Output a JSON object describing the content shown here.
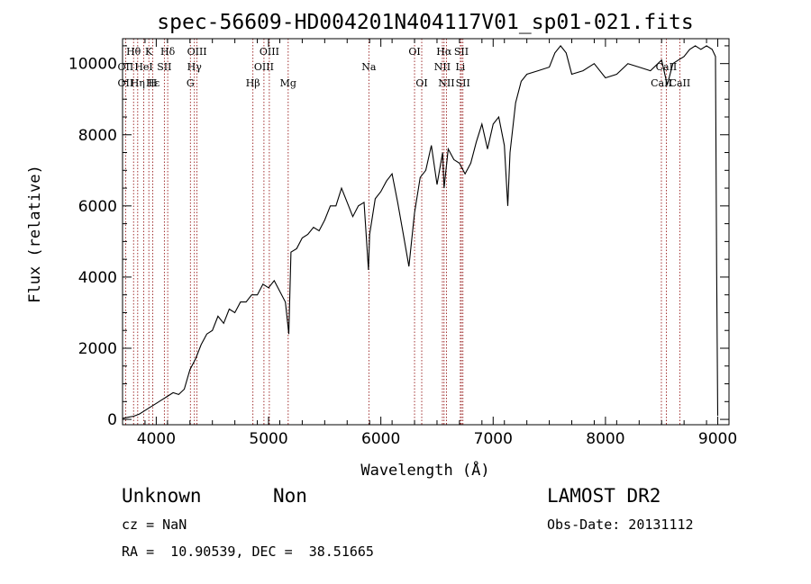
{
  "chart_data": {
    "type": "line",
    "title": "spec-56609-HD004201N404117V01_sp01-021.fits",
    "xlabel": "Wavelength (Å)",
    "ylabel": "Flux (relative)",
    "xlim": [
      3700,
      9100
    ],
    "ylim": [
      -150,
      10700
    ],
    "x_ticks": [
      4000,
      5000,
      6000,
      7000,
      8000,
      9000
    ],
    "y_ticks": [
      0,
      2000,
      4000,
      6000,
      8000,
      10000
    ],
    "grid": false,
    "series": [
      {
        "x": [
          3700,
          3750,
          3800,
          3850,
          3900,
          3950,
          4000,
          4050,
          4100,
          4150,
          4200,
          4250,
          4300,
          4350,
          4400,
          4450,
          4500,
          4550,
          4600,
          4650,
          4700,
          4750,
          4800,
          4850,
          4900,
          4950,
          5000,
          5050,
          5100,
          5150,
          5180,
          5200,
          5250,
          5300,
          5350,
          5400,
          5450,
          5500,
          5550,
          5600,
          5650,
          5700,
          5750,
          5800,
          5850,
          5890,
          5900,
          5950,
          6000,
          6050,
          6100,
          6150,
          6200,
          6250,
          6300,
          6350,
          6400,
          6450,
          6500,
          6550,
          6563,
          6600,
          6650,
          6700,
          6750,
          6800,
          6850,
          6900,
          6950,
          7000,
          7050,
          7100,
          7130,
          7150,
          7200,
          7250,
          7300,
          7400,
          7500,
          7550,
          7600,
          7650,
          7700,
          7800,
          7900,
          8000,
          8100,
          8200,
          8300,
          8400,
          8500,
          8550,
          8600,
          8650,
          8700,
          8750,
          8800,
          8850,
          8900,
          8950,
          8980,
          8990,
          9000
        ],
        "y": [
          30,
          60,
          90,
          150,
          250,
          350,
          450,
          550,
          650,
          750,
          700,
          850,
          1400,
          1700,
          2100,
          2400,
          2500,
          2900,
          2700,
          3100,
          3000,
          3300,
          3300,
          3500,
          3500,
          3800,
          3700,
          3900,
          3600,
          3300,
          2400,
          4700,
          4800,
          5100,
          5200,
          5400,
          5300,
          5600,
          6000,
          6000,
          6500,
          6100,
          5700,
          6000,
          6100,
          4200,
          5200,
          6200,
          6400,
          6700,
          6900,
          6100,
          5200,
          4300,
          5800,
          6800,
          7000,
          7700,
          6600,
          7500,
          6500,
          7600,
          7300,
          7200,
          6900,
          7200,
          7800,
          8300,
          7600,
          8300,
          8500,
          7700,
          6000,
          7500,
          8900,
          9500,
          9700,
          9800,
          9900,
          10300,
          10500,
          10300,
          9700,
          9800,
          10000,
          9600,
          9700,
          10000,
          9900,
          9800,
          10100,
          9400,
          10000,
          10100,
          10200,
          10400,
          10500,
          10400,
          10500,
          10400,
          10200,
          4200,
          100
        ]
      }
    ],
    "annotations": [
      {
        "text": "Hθ",
        "x": 3798
      },
      {
        "text": "K",
        "x": 3934
      },
      {
        "text": "Hδ",
        "x": 4102
      },
      {
        "text": "OIII",
        "x": 4363
      },
      {
        "text": "OIII",
        "x": 5007
      },
      {
        "text": "OI",
        "x": 6300
      },
      {
        "text": "Hα",
        "x": 6563
      },
      {
        "text": "SII",
        "x": 6717
      },
      {
        "text": "OII",
        "x": 3727
      },
      {
        "text": "HeI",
        "x": 3889
      },
      {
        "text": "SII",
        "x": 4072
      },
      {
        "text": "Hγ",
        "x": 4340
      },
      {
        "text": "OIII",
        "x": 4959
      },
      {
        "text": "Na",
        "x": 5893
      },
      {
        "text": "NII",
        "x": 6548
      },
      {
        "text": "Li",
        "x": 6708
      },
      {
        "text": "CaII",
        "x": 8542
      },
      {
        "text": "OII",
        "x": 3727
      },
      {
        "text": "Hε",
        "x": 3970
      },
      {
        "text": "Hη",
        "x": 3835
      },
      {
        "text": "H",
        "x": 3968
      },
      {
        "text": "G",
        "x": 4304
      },
      {
        "text": "Hβ",
        "x": 4861
      },
      {
        "text": "Mg",
        "x": 5175
      },
      {
        "text": "OI",
        "x": 6364
      },
      {
        "text": "NII",
        "x": 6584
      },
      {
        "text": "SII",
        "x": 6731
      },
      {
        "text": "CaII",
        "x": 8498
      },
      {
        "text": "CaII",
        "x": 8662
      }
    ],
    "line_positions": [
      3727,
      3798,
      3835,
      3889,
      3934,
      3968,
      4072,
      4102,
      4304,
      4340,
      4363,
      4861,
      4959,
      5007,
      5175,
      5893,
      6300,
      6364,
      6548,
      6563,
      6584,
      6708,
      6717,
      6731,
      8498,
      8542,
      8662
    ],
    "line_color": "#8b0000",
    "spectrum_color": "#000000"
  },
  "info": {
    "object": "Unknown",
    "class": "Non",
    "survey": "LAMOST DR2",
    "cz": "cz = NaN",
    "obs_date": "Obs-Date: 20131112",
    "coords": "RA =  10.90539, DEC =  38.51665"
  }
}
